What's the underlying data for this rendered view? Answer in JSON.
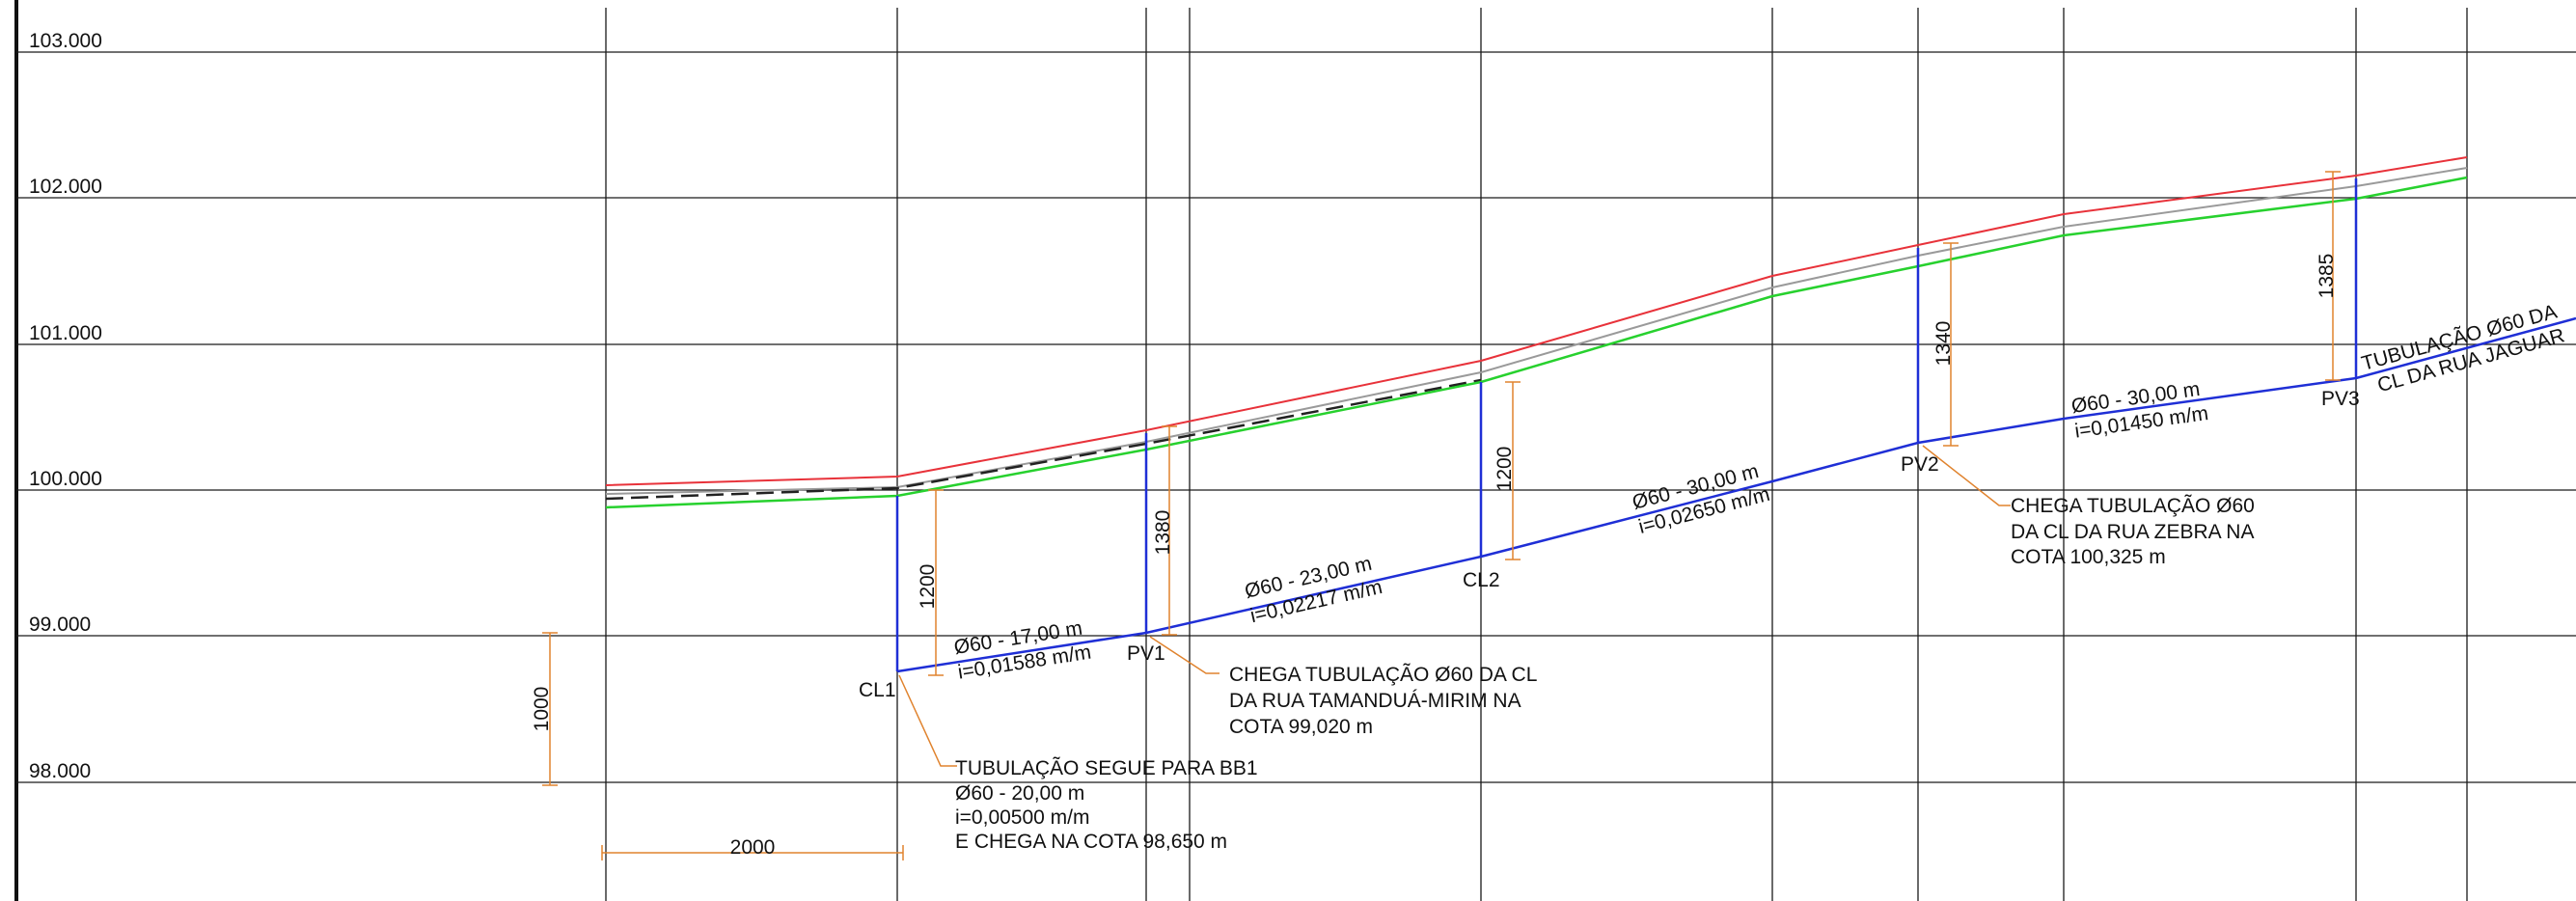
{
  "colors": {
    "grid": "#1a1a1a",
    "pipe": "#1f2fd6",
    "terrain_red": "#e8323a",
    "terrain_gray": "#9a9a9a",
    "terrain_green": "#27d12e",
    "terrain_dashed": "#222222",
    "dimension": "#e0832e"
  },
  "levels": [
    "103.000",
    "102.000",
    "101.000",
    "100.000",
    "99.000",
    "98.000"
  ],
  "nodes": {
    "cl1": "CL1",
    "pv1": "PV1",
    "cl2": "CL2",
    "pv2": "PV2",
    "pv3": "PV3"
  },
  "segments": {
    "s1": {
      "diameter_length": "Ø60 - 17,00 m",
      "slope": "i=0,01588 m/m"
    },
    "s2": {
      "diameter_length": "Ø60 - 23,00 m",
      "slope": "i=0,02217 m/m"
    },
    "s3": {
      "diameter_length": "Ø60 - 30,00 m",
      "slope": "i=0,02650 m/m"
    },
    "s4": {
      "diameter_length": "Ø60 - 30,00 m",
      "slope": "i=0,01450 m/m"
    }
  },
  "depths": {
    "cl1": "1200",
    "pv1": "1380",
    "cl2": "1200",
    "pv2": "1340",
    "pv3": "1385"
  },
  "scale_refs": {
    "vertical": "1000",
    "horizontal": "2000"
  },
  "annotations": {
    "outlet": [
      "TUBULAÇÃO SEGUE PARA BB1",
      "Ø60 - 20,00 m",
      "i=0,00500 m/m",
      "E CHEGA NA COTA 98,650 m"
    ],
    "pv1_inflow": [
      "CHEGA TUBULAÇÃO Ø60 DA CL",
      "DA RUA TAMANDUÁ-MIRIM NA",
      "COTA 99,020 m"
    ],
    "pv2_inflow": [
      "CHEGA TUBULAÇÃO Ø60",
      "DA CL DA RUA ZEBRA NA",
      "COTA 100,325 m"
    ],
    "pv3_inflow": [
      "TUBULAÇÃO Ø60 DA",
      "CL DA RUA JAGUAR"
    ]
  }
}
